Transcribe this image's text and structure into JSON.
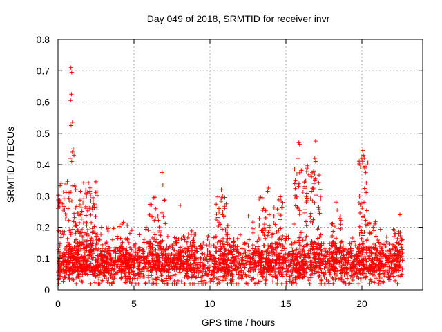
{
  "chart_data": {
    "type": "scatter",
    "title": "Day 049 of 2018, SRMTID for receiver invr",
    "xlabel": "GPS time / hours",
    "ylabel": "SRMTID / TECUs",
    "xlim": [
      0,
      24.0
    ],
    "ylim": [
      0,
      0.8
    ],
    "x_ticks": [
      0,
      5,
      10,
      15,
      20
    ],
    "y_ticks": [
      0,
      0.1,
      0.2,
      0.3,
      0.4,
      0.5,
      0.6,
      0.7,
      0.8
    ],
    "x_tick_labels": [
      "0",
      "5",
      "10",
      "15",
      "20"
    ],
    "y_tick_labels": [
      "0",
      "0.1",
      "0.2",
      "0.3",
      "0.4",
      "0.5",
      "0.6",
      "0.7",
      "0.8"
    ],
    "grid": true,
    "marker": "+",
    "colors": {
      "series": "#ff0000",
      "grid": "#a0a0a0",
      "axis": "#000000"
    },
    "series": [
      {
        "name": "SRMTID",
        "generator": {
          "x_range": [
            0,
            22.7
          ],
          "baseline": 0.085,
          "spread": 0.07,
          "count": 2400,
          "bursts": [
            {
              "start": 0.0,
              "end": 2.6,
              "peak": 0.35,
              "count": 260
            },
            {
              "start": 1.5,
              "end": 3.5,
              "peak": 0.2,
              "count": 60
            },
            {
              "start": 4.0,
              "end": 4.6,
              "peak": 0.23,
              "count": 40
            },
            {
              "start": 6.0,
              "end": 7.1,
              "peak": 0.3,
              "count": 70
            },
            {
              "start": 7.6,
              "end": 9.2,
              "peak": 0.19,
              "count": 60
            },
            {
              "start": 10.4,
              "end": 11.2,
              "peak": 0.3,
              "count": 60
            },
            {
              "start": 13.2,
              "end": 14.8,
              "peak": 0.3,
              "count": 110
            },
            {
              "start": 15.5,
              "end": 16.5,
              "peak": 0.4,
              "count": 80
            },
            {
              "start": 16.6,
              "end": 17.3,
              "peak": 0.38,
              "count": 60
            },
            {
              "start": 18.0,
              "end": 18.7,
              "peak": 0.26,
              "count": 40
            },
            {
              "start": 19.8,
              "end": 20.4,
              "peak": 0.42,
              "count": 60
            },
            {
              "start": 20.4,
              "end": 21.4,
              "peak": 0.22,
              "count": 50
            },
            {
              "start": 22.0,
              "end": 22.7,
              "peak": 0.2,
              "count": 40
            }
          ],
          "spikes": [
            [
              0.85,
              0.71
            ],
            [
              0.9,
              0.695
            ],
            [
              0.88,
              0.625
            ],
            [
              0.83,
              0.605
            ],
            [
              0.95,
              0.535
            ],
            [
              0.86,
              0.525
            ],
            [
              1.0,
              0.45
            ],
            [
              0.95,
              0.44
            ],
            [
              1.05,
              0.43
            ],
            [
              0.8,
              0.42
            ],
            [
              0.9,
              0.41
            ],
            [
              6.85,
              0.375
            ],
            [
              6.9,
              0.335
            ],
            [
              16.95,
              0.475
            ],
            [
              15.85,
              0.47
            ],
            [
              15.9,
              0.465
            ],
            [
              15.8,
              0.42
            ],
            [
              16.9,
              0.42
            ],
            [
              16.95,
              0.41
            ],
            [
              20.05,
              0.445
            ],
            [
              20.1,
              0.43
            ],
            [
              20.15,
              0.42
            ],
            [
              20.05,
              0.405
            ],
            [
              20.2,
              0.395
            ],
            [
              13.85,
              0.325
            ],
            [
              13.8,
              0.315
            ],
            [
              10.75,
              0.32
            ],
            [
              18.3,
              0.28
            ],
            [
              8.05,
              0.27
            ],
            [
              22.5,
              0.24
            ]
          ]
        }
      }
    ]
  }
}
